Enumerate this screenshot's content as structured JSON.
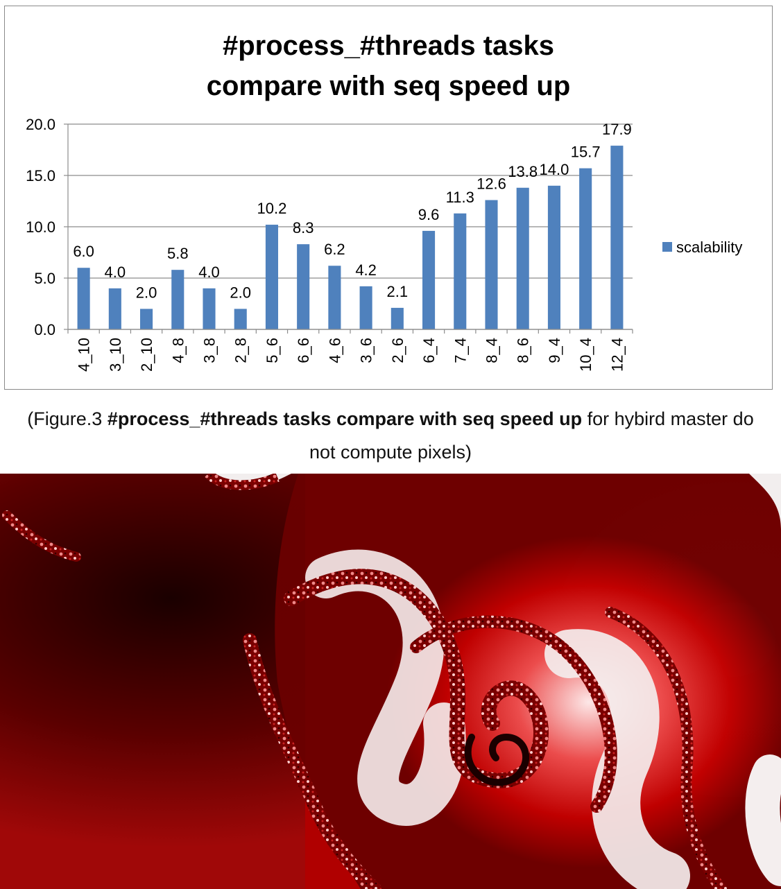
{
  "chart_data": {
    "type": "bar",
    "title_line1": "#process_#threads tasks",
    "title_line2": "compare with seq speed up",
    "categories": [
      "4_10",
      "3_10",
      "2_10",
      "4_8",
      "3_8",
      "2_8",
      "5_6",
      "6_6",
      "4_6",
      "3_6",
      "2_6",
      "6_4",
      "7_4",
      "8_4",
      "8_6",
      "9_4",
      "10_4",
      "12_4"
    ],
    "series": [
      {
        "name": "scalability",
        "values": [
          6.0,
          4.0,
          2.0,
          5.8,
          4.0,
          2.0,
          10.2,
          8.3,
          6.2,
          4.2,
          2.1,
          9.6,
          11.3,
          12.6,
          13.8,
          14.0,
          15.7,
          17.9
        ],
        "color": "#4f81bd"
      }
    ],
    "data_labels": [
      "6.0",
      "4.0",
      "2.0",
      "5.8",
      "4.0",
      "2.0",
      "10.2",
      "8.3",
      "6.2",
      "4.2",
      "2.1",
      "9.6",
      "11.3",
      "12.6",
      "13.8",
      "14.0",
      "15.7",
      "17.9"
    ],
    "ylim": [
      0,
      20
    ],
    "yticks": [
      "0.0",
      "5.0",
      "10.0",
      "15.0",
      "20.0"
    ],
    "grid": true,
    "legend_position": "right",
    "xlabel": "",
    "ylabel": ""
  },
  "caption": {
    "prefix": "(Figure.3 ",
    "bold": "#process_#threads tasks compare with seq speed up",
    "suffix_line1": " for hybird master do",
    "line2": "not compute pixels)"
  },
  "fractal": {
    "dark_color": "#3a0000",
    "mid_color": "#d01010",
    "light_color": "#f4f0f0"
  }
}
